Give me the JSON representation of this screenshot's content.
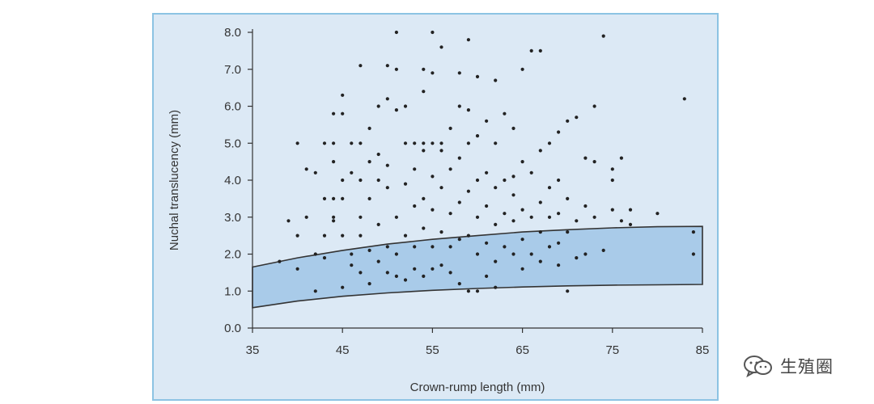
{
  "chart_data": {
    "type": "scatter",
    "xlabel": "Crown-rump length (mm)",
    "ylabel": "Nuchal translucency (mm)",
    "xlim": [
      35,
      85
    ],
    "ylim": [
      0,
      8
    ],
    "x_ticks": [
      "35",
      "45",
      "55",
      "65",
      "75",
      "85"
    ],
    "y_ticks": [
      "0.0",
      "1.0",
      "2.0",
      "3.0",
      "4.0",
      "5.0",
      "6.0",
      "7.0",
      "8.0"
    ],
    "grid": false,
    "reference_band": {
      "x": [
        35,
        40,
        45,
        50,
        55,
        60,
        65,
        70,
        75,
        80,
        85
      ],
      "upper": [
        1.65,
        1.9,
        2.1,
        2.27,
        2.4,
        2.5,
        2.6,
        2.66,
        2.71,
        2.74,
        2.75
      ],
      "lower": [
        0.55,
        0.73,
        0.86,
        0.95,
        1.02,
        1.07,
        1.11,
        1.14,
        1.16,
        1.17,
        1.18
      ],
      "fill": "#a9cbe9",
      "stroke": "#333333"
    },
    "point_color": "#222222",
    "points": [
      [
        38,
        1.8
      ],
      [
        39,
        2.9
      ],
      [
        40,
        5.0
      ],
      [
        40,
        1.6
      ],
      [
        40,
        2.5
      ],
      [
        41,
        4.3
      ],
      [
        41,
        3.0
      ],
      [
        42,
        4.2
      ],
      [
        42,
        2.0
      ],
      [
        42,
        1.0
      ],
      [
        43,
        5.0
      ],
      [
        43,
        3.5
      ],
      [
        43,
        2.5
      ],
      [
        43,
        1.9
      ],
      [
        44,
        5.8
      ],
      [
        44,
        5.0
      ],
      [
        44,
        4.5
      ],
      [
        44,
        3.5
      ],
      [
        44,
        3.0
      ],
      [
        44,
        2.9
      ],
      [
        45,
        6.3
      ],
      [
        45,
        5.8
      ],
      [
        45,
        4.0
      ],
      [
        45,
        3.5
      ],
      [
        45,
        2.5
      ],
      [
        45,
        1.1
      ],
      [
        46,
        5.0
      ],
      [
        46,
        4.2
      ],
      [
        46,
        2.0
      ],
      [
        46,
        1.7
      ],
      [
        47,
        7.1
      ],
      [
        47,
        5.0
      ],
      [
        47,
        4.0
      ],
      [
        47,
        3.0
      ],
      [
        47,
        2.5
      ],
      [
        47,
        1.5
      ],
      [
        48,
        5.4
      ],
      [
        48,
        4.5
      ],
      [
        48,
        3.5
      ],
      [
        48,
        2.1
      ],
      [
        48,
        1.2
      ],
      [
        49,
        6.0
      ],
      [
        49,
        4.7
      ],
      [
        49,
        4.0
      ],
      [
        49,
        2.8
      ],
      [
        49,
        1.8
      ],
      [
        50,
        7.1
      ],
      [
        50,
        6.2
      ],
      [
        50,
        4.4
      ],
      [
        50,
        3.8
      ],
      [
        50,
        2.2
      ],
      [
        50,
        1.5
      ],
      [
        51,
        8.0
      ],
      [
        51,
        7.0
      ],
      [
        51,
        5.9
      ],
      [
        51,
        3.0
      ],
      [
        51,
        2.0
      ],
      [
        51,
        1.4
      ],
      [
        52,
        6.0
      ],
      [
        52,
        5.0
      ],
      [
        52,
        3.9
      ],
      [
        52,
        2.5
      ],
      [
        52,
        1.3
      ],
      [
        53,
        5.0
      ],
      [
        53,
        4.3
      ],
      [
        53,
        3.3
      ],
      [
        53,
        2.2
      ],
      [
        53,
        1.6
      ],
      [
        54,
        7.0
      ],
      [
        54,
        6.4
      ],
      [
        54,
        5.0
      ],
      [
        54,
        4.8
      ],
      [
        54,
        3.5
      ],
      [
        54,
        2.7
      ],
      [
        54,
        1.4
      ],
      [
        55,
        8.0
      ],
      [
        55,
        6.9
      ],
      [
        55,
        5.0
      ],
      [
        55,
        4.1
      ],
      [
        55,
        3.2
      ],
      [
        55,
        2.2
      ],
      [
        55,
        1.6
      ],
      [
        56,
        7.6
      ],
      [
        56,
        5.0
      ],
      [
        56,
        4.8
      ],
      [
        56,
        3.8
      ],
      [
        56,
        2.6
      ],
      [
        56,
        1.7
      ],
      [
        57,
        5.4
      ],
      [
        57,
        4.3
      ],
      [
        57,
        3.1
      ],
      [
        57,
        2.2
      ],
      [
        57,
        1.5
      ],
      [
        58,
        6.9
      ],
      [
        58,
        6.0
      ],
      [
        58,
        4.6
      ],
      [
        58,
        3.4
      ],
      [
        58,
        2.4
      ],
      [
        58,
        1.2
      ],
      [
        59,
        7.8
      ],
      [
        59,
        5.9
      ],
      [
        59,
        5.0
      ],
      [
        59,
        3.7
      ],
      [
        59,
        2.5
      ],
      [
        59,
        1.0
      ],
      [
        60,
        6.8
      ],
      [
        60,
        5.2
      ],
      [
        60,
        4.0
      ],
      [
        60,
        3.0
      ],
      [
        60,
        2.0
      ],
      [
        60,
        1.0
      ],
      [
        61,
        5.6
      ],
      [
        61,
        4.2
      ],
      [
        61,
        3.3
      ],
      [
        61,
        2.3
      ],
      [
        61,
        1.4
      ],
      [
        62,
        6.7
      ],
      [
        62,
        5.0
      ],
      [
        62,
        3.8
      ],
      [
        62,
        2.8
      ],
      [
        62,
        1.8
      ],
      [
        62,
        1.1
      ],
      [
        63,
        5.8
      ],
      [
        63,
        4.0
      ],
      [
        63,
        3.1
      ],
      [
        63,
        2.2
      ],
      [
        64,
        5.4
      ],
      [
        64,
        4.1
      ],
      [
        64,
        3.6
      ],
      [
        64,
        2.9
      ],
      [
        64,
        2.0
      ],
      [
        65,
        7.0
      ],
      [
        65,
        4.5
      ],
      [
        65,
        3.2
      ],
      [
        65,
        2.4
      ],
      [
        65,
        1.6
      ],
      [
        66,
        7.5
      ],
      [
        66,
        4.2
      ],
      [
        66,
        3.0
      ],
      [
        66,
        2.0
      ],
      [
        67,
        7.5
      ],
      [
        67,
        4.8
      ],
      [
        67,
        3.4
      ],
      [
        67,
        2.6
      ],
      [
        67,
        1.8
      ],
      [
        68,
        5.0
      ],
      [
        68,
        3.8
      ],
      [
        68,
        3.0
      ],
      [
        68,
        2.2
      ],
      [
        69,
        5.3
      ],
      [
        69,
        4.0
      ],
      [
        69,
        3.1
      ],
      [
        69,
        2.3
      ],
      [
        69,
        1.7
      ],
      [
        70,
        5.6
      ],
      [
        70,
        3.5
      ],
      [
        70,
        2.6
      ],
      [
        70,
        1.0
      ],
      [
        71,
        5.7
      ],
      [
        71,
        2.9
      ],
      [
        71,
        1.9
      ],
      [
        72,
        4.6
      ],
      [
        72,
        3.3
      ],
      [
        72,
        2.0
      ],
      [
        73,
        6.0
      ],
      [
        73,
        4.5
      ],
      [
        73,
        3.0
      ],
      [
        74,
        7.9
      ],
      [
        74,
        2.1
      ],
      [
        75,
        4.3
      ],
      [
        75,
        4.0
      ],
      [
        75,
        3.2
      ],
      [
        76,
        4.6
      ],
      [
        76,
        2.9
      ],
      [
        77,
        3.2
      ],
      [
        77,
        2.8
      ],
      [
        80,
        3.1
      ],
      [
        83,
        6.2
      ],
      [
        84,
        2.6
      ],
      [
        84,
        2.0
      ]
    ]
  },
  "watermark": {
    "text": "生殖圈",
    "icon": "wechat-bubbles-icon"
  }
}
